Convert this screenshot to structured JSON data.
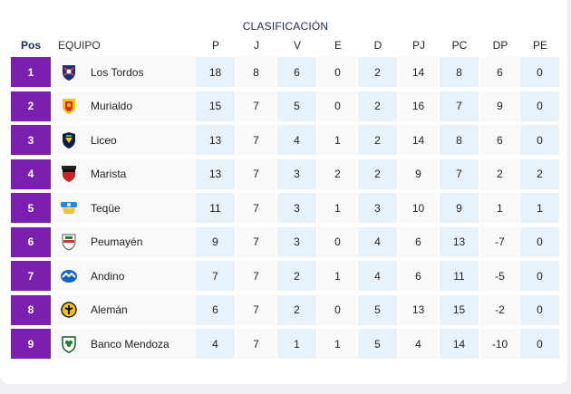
{
  "title": "CLASIFICACIÓN",
  "headers": {
    "pos": "Pos",
    "team": "EQUIPO",
    "p": "P",
    "j": "J",
    "v": "V",
    "e": "E",
    "d": "D",
    "pj": "PJ",
    "pc": "PC",
    "dp": "DP",
    "pe": "PE"
  },
  "colors": {
    "pos_bg": "#7b1fb0",
    "alt_col": "#e8f2fa"
  },
  "rows": [
    {
      "pos": "1",
      "team": "Los Tordos",
      "icon": "los-tordos-crest-icon",
      "p": "18",
      "j": "8",
      "v": "6",
      "e": "0",
      "d": "2",
      "pj": "14",
      "pc": "8",
      "dp": "6",
      "pe": "0"
    },
    {
      "pos": "2",
      "team": "Murialdo",
      "icon": "murialdo-crest-icon",
      "p": "15",
      "j": "7",
      "v": "5",
      "e": "0",
      "d": "2",
      "pj": "16",
      "pc": "7",
      "dp": "9",
      "pe": "0"
    },
    {
      "pos": "3",
      "team": "Liceo",
      "icon": "liceo-crest-icon",
      "p": "13",
      "j": "7",
      "v": "4",
      "e": "1",
      "d": "2",
      "pj": "14",
      "pc": "8",
      "dp": "6",
      "pe": "0"
    },
    {
      "pos": "4",
      "team": "Marista",
      "icon": "marista-crest-icon",
      "p": "13",
      "j": "7",
      "v": "3",
      "e": "2",
      "d": "2",
      "pj": "9",
      "pc": "7",
      "dp": "2",
      "pe": "2"
    },
    {
      "pos": "5",
      "team": "Teqüe",
      "icon": "teque-crest-icon",
      "p": "11",
      "j": "7",
      "v": "3",
      "e": "1",
      "d": "3",
      "pj": "10",
      "pc": "9",
      "dp": "1",
      "pe": "1"
    },
    {
      "pos": "6",
      "team": "Peumayén",
      "icon": "peumayen-crest-icon",
      "p": "9",
      "j": "7",
      "v": "3",
      "e": "0",
      "d": "4",
      "pj": "6",
      "pc": "13",
      "dp": "-7",
      "pe": "0"
    },
    {
      "pos": "7",
      "team": "Andino",
      "icon": "andino-crest-icon",
      "p": "7",
      "j": "7",
      "v": "2",
      "e": "1",
      "d": "4",
      "pj": "6",
      "pc": "11",
      "dp": "-5",
      "pe": "0"
    },
    {
      "pos": "8",
      "team": "Alemán",
      "icon": "aleman-crest-icon",
      "p": "6",
      "j": "7",
      "v": "2",
      "e": "0",
      "d": "5",
      "pj": "13",
      "pc": "15",
      "dp": "-2",
      "pe": "0"
    },
    {
      "pos": "9",
      "team": "Banco Mendoza",
      "icon": "banco-mendoza-crest-icon",
      "p": "4",
      "j": "7",
      "v": "1",
      "e": "1",
      "d": "5",
      "pj": "4",
      "pc": "14",
      "dp": "-10",
      "pe": "0"
    }
  ]
}
